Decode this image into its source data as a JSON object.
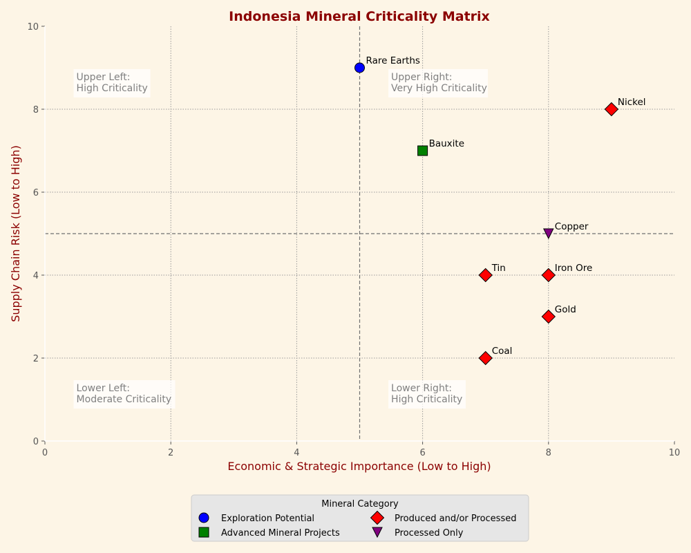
{
  "chart_data": {
    "type": "scatter",
    "title": "Indonesia Mineral Criticality Matrix",
    "xlabel": "Economic & Strategic Importance (Low to High)",
    "ylabel": "Supply Chain Risk (Low to High)",
    "xlim": [
      0,
      10
    ],
    "ylim": [
      0,
      10
    ],
    "xticks": [
      "0",
      "2",
      "4",
      "6",
      "8",
      "10"
    ],
    "yticks": [
      "0",
      "2",
      "4",
      "6",
      "8",
      "10"
    ],
    "grid": true,
    "threshold_lines": {
      "x": 5,
      "y": 5
    },
    "quadrant_labels": [
      {
        "id": "upper-left",
        "lines": [
          "Upper Left:",
          "High Criticality"
        ],
        "x": 0.5,
        "y": 8.7
      },
      {
        "id": "upper-right",
        "lines": [
          "Upper Right:",
          "Very High Criticality"
        ],
        "x": 5.5,
        "y": 8.7
      },
      {
        "id": "lower-left",
        "lines": [
          "Lower Left:",
          "Moderate Criticality"
        ],
        "x": 0.5,
        "y": 1.2
      },
      {
        "id": "lower-right",
        "lines": [
          "Lower Right:",
          "High Criticality"
        ],
        "x": 5.5,
        "y": 1.2
      }
    ],
    "categories": [
      {
        "name": "Exploration Potential",
        "marker": "circle",
        "color": "#0000ff"
      },
      {
        "name": "Advanced Mineral Projects",
        "marker": "square",
        "color": "#008000"
      },
      {
        "name": "Produced and/or Processed",
        "marker": "diamond",
        "color": "#ff0000"
      },
      {
        "name": "Processed Only",
        "marker": "triangle-down",
        "color": "#800080"
      }
    ],
    "points": [
      {
        "label": "Rare Earths",
        "x": 5,
        "y": 9,
        "category": 0
      },
      {
        "label": "Bauxite",
        "x": 6,
        "y": 7,
        "category": 1
      },
      {
        "label": "Nickel",
        "x": 9,
        "y": 8,
        "category": 2
      },
      {
        "label": "Copper",
        "x": 8,
        "y": 5,
        "category": 3
      },
      {
        "label": "Tin",
        "x": 7,
        "y": 4,
        "category": 2
      },
      {
        "label": "Iron Ore",
        "x": 8,
        "y": 4,
        "category": 2
      },
      {
        "label": "Gold",
        "x": 8,
        "y": 3,
        "category": 2
      },
      {
        "label": "Coal",
        "x": 7,
        "y": 2,
        "category": 2
      }
    ],
    "legend": {
      "title": "Mineral Category",
      "placement": "bottom-center"
    }
  }
}
